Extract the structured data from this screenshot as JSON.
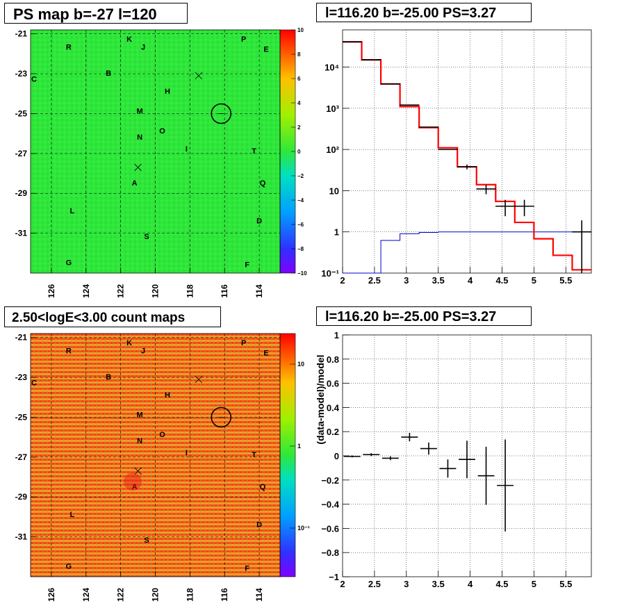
{
  "colors": {
    "map_green": "#2ee83a",
    "map_red": "#ff3a00",
    "data_black": "#000000",
    "model_red": "#ff0000",
    "model_blue": "#0000cc"
  },
  "panels": {
    "map1": {
      "title": "PS map b=-27 l=120",
      "x_ticks": [
        "126",
        "124",
        "122",
        "120",
        "118",
        "116",
        "114"
      ],
      "y_ticks": [
        "-21",
        "-23",
        "-25",
        "-27",
        "-29",
        "-31"
      ],
      "colorbar_ticks": [
        "10",
        "8",
        "6",
        "4",
        "2",
        "0",
        "−2",
        "−4",
        "−6",
        "−8",
        "−10"
      ],
      "labels": [
        "R",
        "K",
        "J",
        "P",
        "E",
        "C",
        "B",
        "H",
        "M",
        "N",
        "O",
        "I",
        "T",
        "A",
        "Q",
        "L",
        "D",
        "S",
        "G",
        "F"
      ]
    },
    "map2": {
      "title": "2.50<logE<3.00 count maps",
      "x_ticks": [
        "126",
        "124",
        "122",
        "120",
        "118",
        "116",
        "114"
      ],
      "y_ticks": [
        "-21",
        "-23",
        "-25",
        "-27",
        "-29",
        "-31"
      ],
      "colorbar_ticks": [
        "10",
        "1",
        "10⁻¹"
      ],
      "labels": [
        "R",
        "K",
        "J",
        "P",
        "E",
        "C",
        "B",
        "H",
        "M",
        "N",
        "O",
        "I",
        "T",
        "A",
        "Q",
        "L",
        "D",
        "S",
        "G",
        "F"
      ]
    },
    "spectrum_title": "l=116.20 b=-25.00 PS=3.27",
    "residual_title": "l=116.20 b=-25.00 PS=3.27",
    "residual_ylabel": "(data-model)/model"
  },
  "chart_data": [
    {
      "type": "heatmap",
      "title": "PS map b=-27 l=120",
      "xlabel": "",
      "ylabel": "",
      "xlim": [
        127.2,
        112.8
      ],
      "ylim": [
        -33.0,
        -20.8
      ],
      "zlim": [
        -10,
        10
      ],
      "point_sources": [
        {
          "name": "R",
          "l": 125.0,
          "b": -21.8
        },
        {
          "name": "K",
          "l": 121.5,
          "b": -21.4
        },
        {
          "name": "J",
          "l": 120.7,
          "b": -21.8
        },
        {
          "name": "P",
          "l": 114.9,
          "b": -21.4
        },
        {
          "name": "E",
          "l": 113.6,
          "b": -21.9
        },
        {
          "name": "C",
          "l": 127.0,
          "b": -23.4
        },
        {
          "name": "B",
          "l": 122.7,
          "b": -23.1
        },
        {
          "name": "H",
          "l": 119.3,
          "b": -24.0
        },
        {
          "name": "M",
          "l": 120.9,
          "b": -25.0
        },
        {
          "name": "N",
          "l": 120.9,
          "b": -26.3
        },
        {
          "name": "O",
          "l": 119.6,
          "b": -26.0
        },
        {
          "name": "I",
          "l": 118.2,
          "b": -26.9
        },
        {
          "name": "T",
          "l": 114.3,
          "b": -27.0
        },
        {
          "name": "A",
          "l": 121.2,
          "b": -28.6
        },
        {
          "name": "Q",
          "l": 113.8,
          "b": -28.6
        },
        {
          "name": "L",
          "l": 124.8,
          "b": -30.0
        },
        {
          "name": "D",
          "l": 114.0,
          "b": -30.5
        },
        {
          "name": "S",
          "l": 120.5,
          "b": -31.3
        },
        {
          "name": "G",
          "l": 125.0,
          "b": -32.6
        },
        {
          "name": "F",
          "l": 114.7,
          "b": -32.7
        }
      ],
      "markers": [
        {
          "kind": "circle",
          "l": 116.2,
          "b": -25.0
        },
        {
          "kind": "cross",
          "l": 117.5,
          "b": -23.1
        },
        {
          "kind": "cross",
          "l": 121.0,
          "b": -27.7
        }
      ]
    },
    {
      "type": "line",
      "title": "l=116.20 b=-25.00 PS=3.27",
      "xlabel": "",
      "ylabel": "",
      "xlim": [
        2,
        5.9
      ],
      "ylim": [
        0.1,
        80000
      ],
      "log_y": true,
      "grid": true,
      "x_ticks": [
        "2",
        "2.5",
        "3",
        "3.5",
        "4",
        "4.5",
        "5",
        "5.5"
      ],
      "y_ticks": [
        "10⁻¹",
        "1",
        "10",
        "10²",
        "10³",
        "10⁴"
      ],
      "series": [
        {
          "kind": "data",
          "x": [
            2.15,
            2.45,
            2.75,
            3.05,
            3.35,
            3.65,
            3.95,
            4.25,
            4.55,
            4.85,
            5.15,
            5.45,
            5.75
          ],
          "y": [
            41000,
            15000,
            3900,
            1200,
            350,
            100,
            38,
            11,
            4.2,
            4.2,
            null,
            null,
            1.0
          ],
          "yerr": [
            0,
            0,
            0,
            0,
            0,
            0,
            5,
            2.8,
            1.8,
            1.8,
            null,
            null,
            0.9
          ]
        },
        {
          "kind": "model-total",
          "edges": [
            2.0,
            2.3,
            2.6,
            2.9,
            3.2,
            3.5,
            3.8,
            4.1,
            4.4,
            4.7,
            5.0,
            5.3,
            5.6,
            5.9
          ],
          "values": [
            41000,
            15000,
            3900,
            1100,
            340,
            110,
            38,
            14,
            5.5,
            1.7,
            0.68,
            0.27,
            0.12
          ]
        },
        {
          "kind": "model-source",
          "edges": [
            2.0,
            2.3,
            2.6,
            2.9,
            3.2,
            3.5,
            3.8,
            4.1,
            4.4,
            4.7,
            5.0,
            5.3,
            5.6,
            5.9
          ],
          "values": [
            0.05,
            0.1,
            0.62,
            0.9,
            0.97,
            1.0,
            1.0,
            1.0,
            1.0,
            1.0,
            1.0,
            1.0,
            1.0
          ]
        }
      ]
    },
    {
      "type": "heatmap",
      "title": "2.50<logE<3.00 count maps",
      "xlabel": "",
      "ylabel": "",
      "xlim": [
        127.2,
        112.8
      ],
      "ylim": [
        -33.0,
        -20.8
      ],
      "zlim": [
        0.05,
        30
      ],
      "log_z": true
    },
    {
      "type": "scatter",
      "title": "l=116.20 b=-25.00 PS=3.27",
      "xlabel": "",
      "ylabel": "(data-model)/model",
      "xlim": [
        2,
        5.9
      ],
      "ylim": [
        -1,
        1
      ],
      "grid": true,
      "x_ticks": [
        "2",
        "2.5",
        "3",
        "3.5",
        "4",
        "4.5",
        "5",
        "5.5"
      ],
      "y_ticks": [
        "−1",
        "−0.8",
        "−0.6",
        "−0.4",
        "−0.2",
        "0",
        "0.2",
        "0.4",
        "0.6",
        "0.8",
        "1"
      ],
      "series": [
        {
          "x": [
            2.15,
            2.45,
            2.75,
            3.05,
            3.35,
            3.65,
            3.95,
            4.25,
            4.55
          ],
          "y": [
            -0.005,
            0.01,
            -0.02,
            0.155,
            0.06,
            -0.105,
            -0.03,
            -0.165,
            -0.245
          ],
          "yerr": [
            0.008,
            0.012,
            0.016,
            0.035,
            0.05,
            0.075,
            0.155,
            0.24,
            0.38
          ],
          "xerr": 0.15
        }
      ]
    }
  ]
}
